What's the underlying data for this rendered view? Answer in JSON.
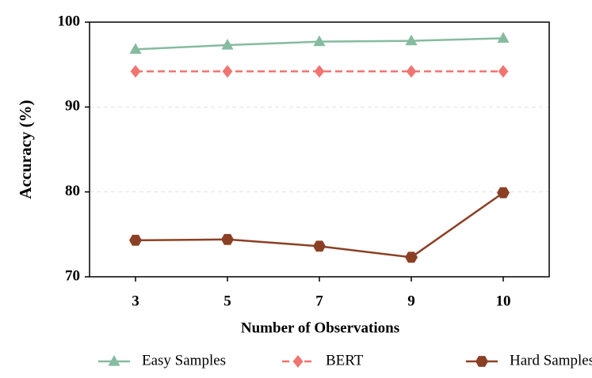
{
  "chart_data": {
    "type": "line",
    "x_label": "Number of Observations",
    "y_label": "Accuracy (%)",
    "categories": [
      "3",
      "5",
      "7",
      "9",
      "10"
    ],
    "ylim": [
      70,
      100
    ],
    "yticks": [
      70,
      80,
      90,
      100
    ],
    "grid": true,
    "legend": "bottom",
    "series": [
      {
        "name": "Easy Samples",
        "color": "#86bba0",
        "marker": "triangle",
        "line_style": "solid",
        "values": [
          96.8,
          97.3,
          97.7,
          97.8,
          98.1
        ]
      },
      {
        "name": "BERT",
        "color": "#f07470",
        "marker": "diamond",
        "line_style": "dashed",
        "values": [
          94.2,
          94.2,
          94.2,
          94.2,
          94.2
        ]
      },
      {
        "name": "Hard Samples",
        "color": "#8b4025",
        "marker": "hexagon",
        "line_style": "solid",
        "values": [
          74.3,
          74.4,
          73.6,
          72.3,
          79.9
        ]
      }
    ]
  }
}
